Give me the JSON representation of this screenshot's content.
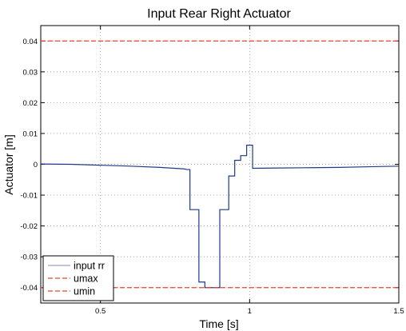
{
  "chart_data": {
    "type": "line",
    "title": "Input Rear Right Actuator",
    "xlabel": "Time [s]",
    "ylabel": "Actuator [m]",
    "xlim": [
      0.3,
      1.5
    ],
    "ylim": [
      -0.045,
      0.045
    ],
    "xticks": [
      0.5,
      1,
      1.5
    ],
    "xtick_labels": [
      "0.5",
      "1",
      "1.5"
    ],
    "yticks": [
      -0.04,
      -0.03,
      -0.02,
      -0.01,
      0,
      0.01,
      0.02,
      0.03,
      0.04
    ],
    "ytick_labels": [
      "-0.04",
      "-0.03",
      "-0.02",
      "-0.01",
      "0",
      "0.01",
      "0.02",
      "0.03",
      "0.04"
    ],
    "grid": true,
    "legend_position": "bottom-left",
    "series": [
      {
        "name": "input rr",
        "color": "#1f3a8a",
        "style": "solid",
        "x": [
          0.3,
          0.4,
          0.5,
          0.6,
          0.7,
          0.78,
          0.79,
          0.79,
          0.8,
          0.8,
          0.83,
          0.83,
          0.85,
          0.85,
          0.9,
          0.9,
          0.93,
          0.93,
          0.95,
          0.95,
          0.97,
          0.97,
          0.99,
          0.99,
          1.01,
          1.01,
          1.1,
          1.2,
          1.3,
          1.4,
          1.5
        ],
        "y": [
          0.0001,
          0.0,
          -0.0003,
          -0.0006,
          -0.001,
          -0.0015,
          -0.0017,
          -0.0017,
          -0.0017,
          -0.0147,
          -0.0147,
          -0.0382,
          -0.0382,
          -0.04,
          -0.04,
          -0.0147,
          -0.0147,
          -0.0038,
          -0.0038,
          0.0013,
          0.0013,
          0.0028,
          0.0028,
          0.0062,
          0.0062,
          -0.0013,
          -0.0012,
          -0.0011,
          -0.001,
          -0.0008,
          -0.0006
        ]
      },
      {
        "name": "umax",
        "color": "#e8452c",
        "style": "dashed",
        "x": [
          0.3,
          1.5
        ],
        "y": [
          0.04,
          0.04
        ]
      },
      {
        "name": "umin",
        "color": "#e8452c",
        "style": "dashed",
        "x": [
          0.3,
          1.5
        ],
        "y": [
          -0.04,
          -0.04
        ]
      }
    ]
  }
}
